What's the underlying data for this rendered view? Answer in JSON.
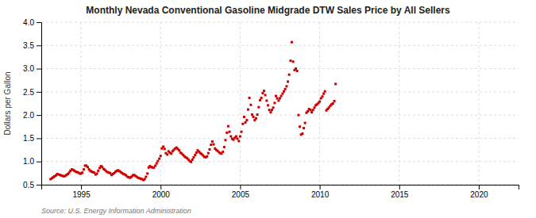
{
  "chart_data": {
    "type": "scatter",
    "title": "Monthly Nevada Conventional Gasoline Midgrade DTW Sales Price by All Sellers",
    "ylabel": "Dollars per Gallon",
    "annotations": [
      "Source: U.S. Energy Information Administration"
    ],
    "xlim": [
      1992.5,
      2022.5
    ],
    "ylim": [
      0.5,
      4.0
    ],
    "xticks": [
      1995,
      2000,
      2005,
      2010,
      2015,
      2020
    ],
    "yticks": [
      0.5,
      {
        "value": 1.0,
        "label": "1.0"
      },
      1.5,
      {
        "value": 2.0,
        "label": "2.0"
      },
      2.5,
      {
        "value": 3.0,
        "label": "3.0"
      },
      3.5,
      {
        "value": 4.0,
        "label": "4.0"
      }
    ],
    "grid": true,
    "color": "#cc0000",
    "marker": "square",
    "x": [
      1993.08,
      1993.17,
      1993.25,
      1993.33,
      1993.42,
      1993.5,
      1993.58,
      1993.67,
      1993.75,
      1993.83,
      1993.92,
      1994.0,
      1994.08,
      1994.17,
      1994.25,
      1994.33,
      1994.42,
      1994.5,
      1994.58,
      1994.67,
      1994.75,
      1994.83,
      1994.92,
      1995.0,
      1995.08,
      1995.17,
      1995.25,
      1995.33,
      1995.42,
      1995.5,
      1995.58,
      1995.67,
      1995.75,
      1995.83,
      1995.92,
      1996.0,
      1996.08,
      1996.17,
      1996.25,
      1996.33,
      1996.42,
      1996.5,
      1996.58,
      1996.67,
      1996.75,
      1996.83,
      1996.92,
      1997.0,
      1997.08,
      1997.17,
      1997.25,
      1997.33,
      1997.42,
      1997.5,
      1997.58,
      1997.67,
      1997.75,
      1997.83,
      1997.92,
      1998.0,
      1998.08,
      1998.17,
      1998.25,
      1998.33,
      1998.42,
      1998.5,
      1998.58,
      1998.67,
      1998.75,
      1998.83,
      1998.92,
      1999.0,
      1999.08,
      1999.17,
      1999.25,
      1999.33,
      1999.42,
      1999.5,
      1999.58,
      1999.67,
      1999.75,
      1999.83,
      1999.92,
      2000.0,
      2000.08,
      2000.17,
      2000.25,
      2000.33,
      2000.42,
      2000.5,
      2000.58,
      2000.67,
      2000.75,
      2000.83,
      2000.92,
      2001.0,
      2001.08,
      2001.17,
      2001.25,
      2001.33,
      2001.42,
      2001.5,
      2001.58,
      2001.67,
      2001.75,
      2001.83,
      2001.92,
      2002.0,
      2002.08,
      2002.17,
      2002.25,
      2002.33,
      2002.42,
      2002.5,
      2002.58,
      2002.67,
      2002.75,
      2002.83,
      2002.92,
      2003.0,
      2003.08,
      2003.17,
      2003.25,
      2003.33,
      2003.42,
      2003.5,
      2003.58,
      2003.67,
      2003.75,
      2003.83,
      2003.92,
      2004.0,
      2004.08,
      2004.17,
      2004.25,
      2004.33,
      2004.42,
      2004.5,
      2004.58,
      2004.67,
      2004.75,
      2004.83,
      2004.92,
      2005.0,
      2005.08,
      2005.17,
      2005.25,
      2005.33,
      2005.42,
      2005.5,
      2005.58,
      2005.67,
      2005.75,
      2005.83,
      2005.92,
      2006.0,
      2006.08,
      2006.17,
      2006.25,
      2006.33,
      2006.42,
      2006.5,
      2006.58,
      2006.67,
      2006.75,
      2006.83,
      2006.92,
      2007.0,
      2007.08,
      2007.17,
      2007.25,
      2007.33,
      2007.42,
      2007.5,
      2007.58,
      2007.67,
      2007.75,
      2007.83,
      2007.92,
      2008.0,
      2008.08,
      2008.17,
      2008.25,
      2008.33,
      2008.42,
      2008.5,
      2008.58,
      2008.67,
      2008.75,
      2008.83,
      2008.92,
      2009.0,
      2009.08,
      2009.17,
      2009.25,
      2009.33,
      2009.42,
      2009.5,
      2009.58,
      2009.67,
      2009.75,
      2009.83,
      2009.92,
      2010.0,
      2010.08,
      2010.17,
      2010.25,
      2010.33,
      2010.42,
      2010.5,
      2010.58,
      2010.67,
      2010.75,
      2010.83,
      2010.92,
      2011.0
    ],
    "values": [
      0.62,
      0.64,
      0.66,
      0.68,
      0.7,
      0.73,
      0.72,
      0.71,
      0.7,
      0.69,
      0.68,
      0.69,
      0.71,
      0.73,
      0.76,
      0.8,
      0.83,
      0.82,
      0.8,
      0.78,
      0.77,
      0.76,
      0.74,
      0.74,
      0.76,
      0.83,
      0.91,
      0.91,
      0.88,
      0.83,
      0.8,
      0.78,
      0.77,
      0.76,
      0.72,
      0.74,
      0.8,
      0.86,
      0.9,
      0.88,
      0.84,
      0.82,
      0.79,
      0.77,
      0.76,
      0.75,
      0.71,
      0.73,
      0.75,
      0.78,
      0.8,
      0.81,
      0.79,
      0.77,
      0.75,
      0.73,
      0.72,
      0.7,
      0.67,
      0.66,
      0.65,
      0.67,
      0.7,
      0.71,
      0.69,
      0.67,
      0.65,
      0.64,
      0.63,
      0.62,
      0.6,
      0.62,
      0.67,
      0.74,
      0.87,
      0.9,
      0.88,
      0.87,
      0.87,
      0.91,
      0.96,
      1.01,
      1.06,
      1.12,
      1.28,
      1.32,
      1.27,
      1.18,
      1.15,
      1.22,
      1.19,
      1.17,
      1.22,
      1.25,
      1.28,
      1.3,
      1.27,
      1.24,
      1.19,
      1.17,
      1.14,
      1.11,
      1.09,
      1.07,
      1.04,
      1.01,
      0.99,
      1.04,
      1.09,
      1.14,
      1.19,
      1.24,
      1.21,
      1.18,
      1.16,
      1.13,
      1.1,
      1.09,
      1.11,
      1.18,
      1.26,
      1.36,
      1.43,
      1.37,
      1.28,
      1.25,
      1.23,
      1.2,
      1.18,
      1.17,
      1.21,
      1.31,
      1.46,
      1.62,
      1.76,
      1.64,
      1.54,
      1.49,
      1.47,
      1.51,
      1.54,
      1.49,
      1.44,
      1.54,
      1.64,
      1.81,
      1.96,
      1.84,
      1.89,
      2.12,
      2.37,
      2.22,
      2.01,
      1.96,
      1.89,
      1.93,
      2.01,
      2.17,
      2.32,
      2.37,
      2.47,
      2.52,
      2.43,
      2.31,
      2.21,
      2.11,
      2.06,
      2.11,
      2.16,
      2.26,
      2.41,
      2.36,
      2.31,
      2.36,
      2.41,
      2.46,
      2.51,
      2.56,
      2.62,
      2.72,
      2.87,
      3.17,
      3.57,
      3.15,
      2.97,
      3.0,
      2.95,
      2.0,
      1.75,
      1.58,
      1.6,
      1.72,
      1.83,
      2.05,
      2.08,
      2.13,
      2.11,
      2.06,
      2.11,
      2.16,
      2.21,
      2.23,
      2.26,
      2.29,
      2.36,
      2.4,
      2.46,
      2.51,
      2.1,
      2.13,
      2.16,
      2.2,
      2.23,
      2.25,
      2.3,
      2.67
    ]
  }
}
